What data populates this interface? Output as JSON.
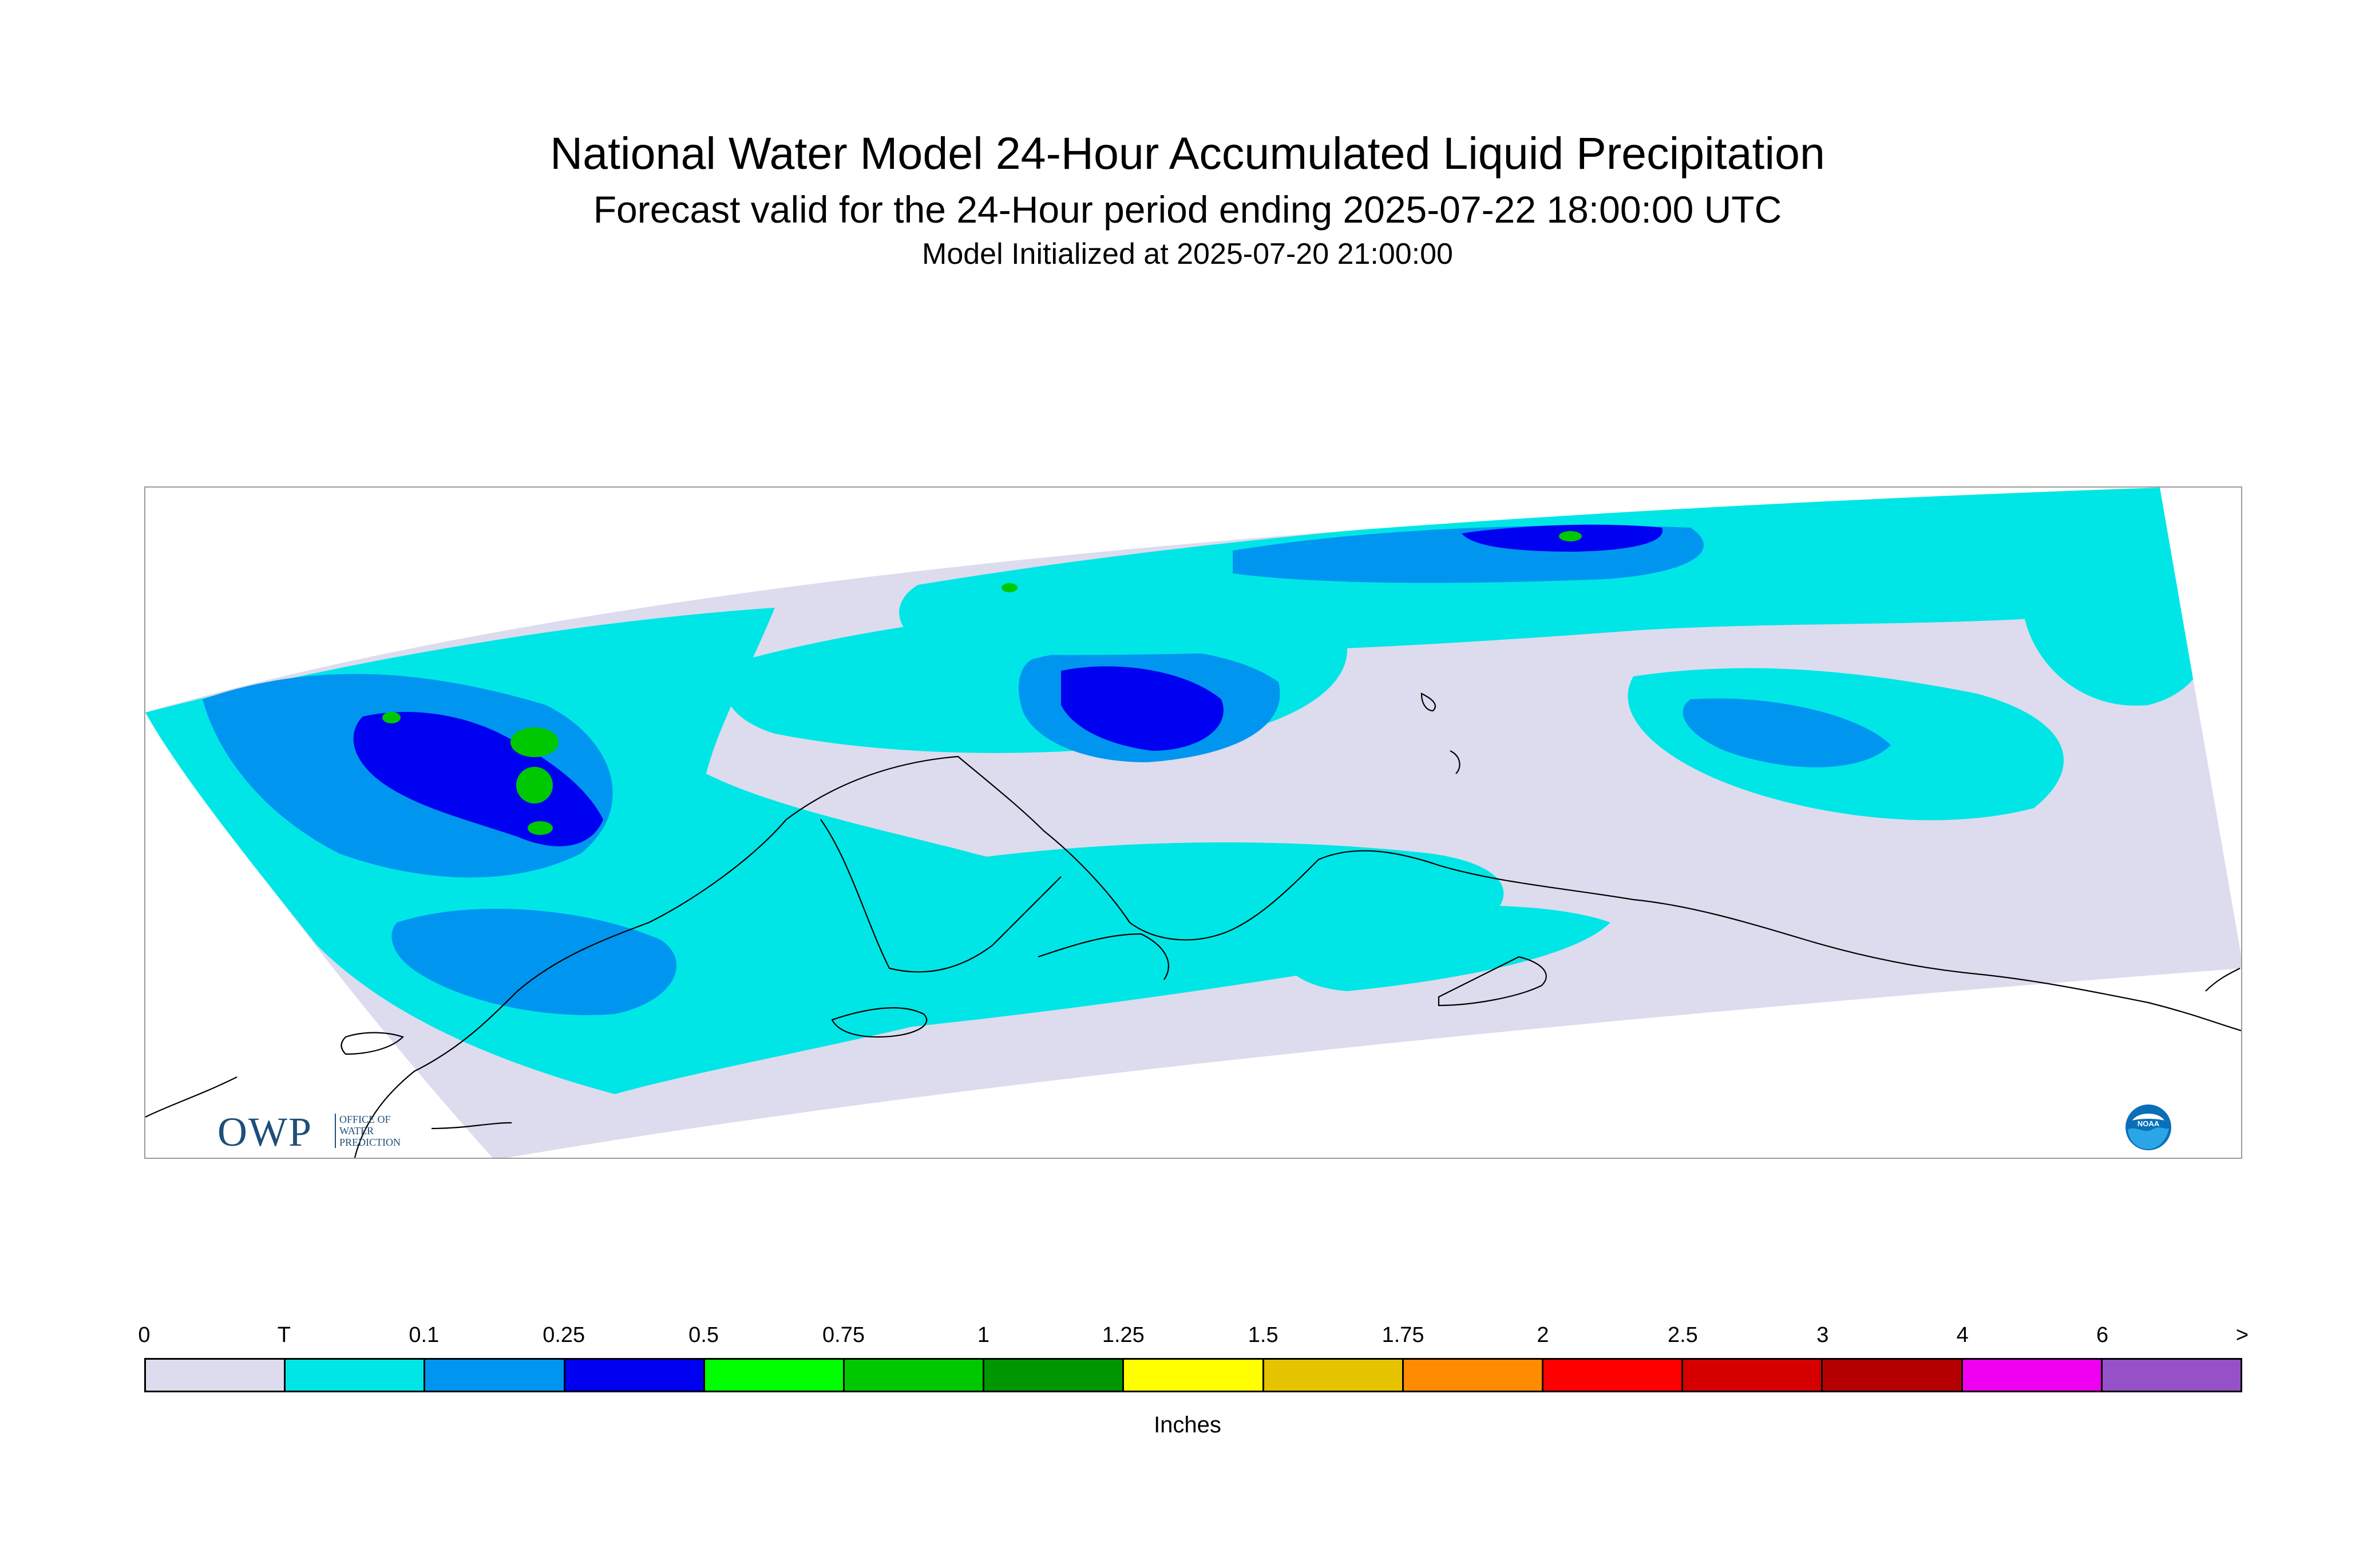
{
  "title": "National Water Model 24-Hour Accumulated Liquid Precipitation",
  "subtitle": "Forecast valid for the 24-Hour period ending 2025-07-22 18:00:00 UTC",
  "initialized": "Model Initialized at 2025-07-20 21:00:00",
  "logos": {
    "owp_mark": "OWP",
    "owp_line1": "OFFICE OF",
    "owp_line2": "WATER",
    "owp_line3": "PREDICTION",
    "noaa": "NOAA"
  },
  "legend": {
    "units": "Inches",
    "labels": [
      "0",
      "T",
      "0.1",
      "0.25",
      "0.5",
      "0.75",
      "1",
      "1.25",
      "1.5",
      "1.75",
      "2",
      "2.5",
      "3",
      "4",
      "6",
      ">"
    ],
    "colors": [
      "#dcdcee",
      "#00e6e6",
      "#0096f0",
      "#0000f0",
      "#00ff00",
      "#00c800",
      "#009600",
      "#ffff00",
      "#e6c300",
      "#ff8c00",
      "#ff0000",
      "#d70000",
      "#b40000",
      "#f000f0",
      "#9650c8"
    ]
  },
  "colors": {
    "land_none": "#dcdcee",
    "trace": "#00e6e6",
    "light": "#0096f0",
    "moderate": "#0000f0",
    "heavy": "#00c800",
    "coastline": "#000000"
  }
}
